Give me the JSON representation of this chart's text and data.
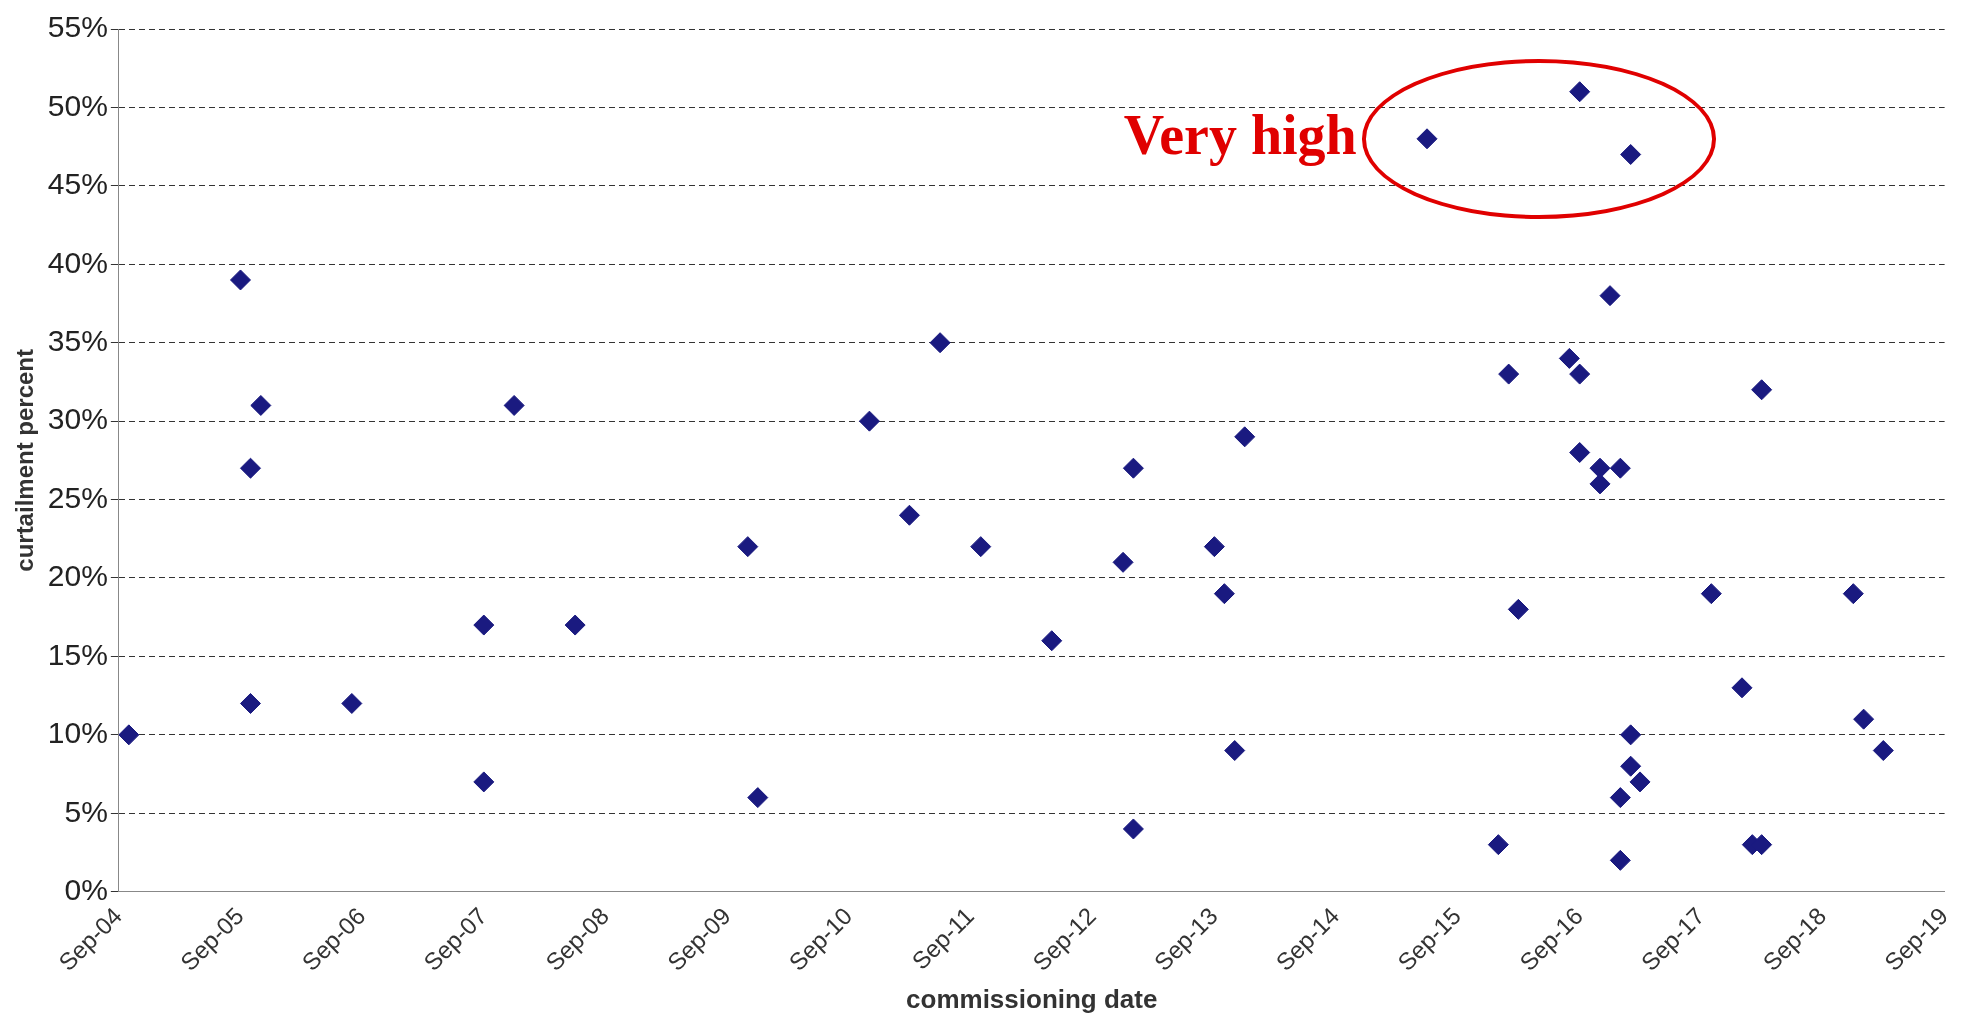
{
  "chart_data": {
    "type": "scatter",
    "xlabel": "commissioning date",
    "ylabel": "curtailment percent",
    "x": [
      "2004-10",
      "2005-09",
      "2005-10",
      "2005-11",
      "2005-10",
      "2006-08",
      "2007-09",
      "2007-09",
      "2007-12",
      "2008-06",
      "2009-11",
      "2009-12",
      "2010-11",
      "2011-03",
      "2011-06",
      "2011-10",
      "2012-05",
      "2012-12",
      "2013-01",
      "2013-01",
      "2013-09",
      "2013-10",
      "2013-12",
      "2013-11",
      "2015-06",
      "2016-01",
      "2016-02",
      "2016-03",
      "2016-08",
      "2016-09",
      "2016-09",
      "2016-09",
      "2016-11",
      "2016-11",
      "2016-12",
      "2017-01",
      "2017-01",
      "2017-01",
      "2017-02",
      "2017-02",
      "2017-02",
      "2017-03",
      "2017-10",
      "2018-01",
      "2018-02",
      "2018-03",
      "2018-03",
      "2018-12",
      "2019-01",
      "2019-03"
    ],
    "values": [
      10,
      39,
      27,
      31,
      12,
      12,
      17,
      7,
      31,
      17,
      22,
      6,
      30,
      24,
      35,
      22,
      16,
      21,
      27,
      4,
      22,
      19,
      29,
      9,
      48,
      3,
      33,
      18,
      34,
      33,
      28,
      51,
      26,
      27,
      38,
      27,
      6,
      2,
      47,
      10,
      8,
      7,
      19,
      13,
      3,
      3,
      32,
      19,
      11,
      9
    ],
    "color": "#1a1a80",
    "marker": "diamond",
    "xlim": [
      "2004-09",
      "2019-09"
    ],
    "xticks": [
      {
        "value": "2004-09",
        "label": "Sep-04"
      },
      {
        "value": "2005-09",
        "label": "Sep-05"
      },
      {
        "value": "2006-09",
        "label": "Sep-06"
      },
      {
        "value": "2007-09",
        "label": "Sep-07"
      },
      {
        "value": "2008-09",
        "label": "Sep-08"
      },
      {
        "value": "2009-09",
        "label": "Sep-09"
      },
      {
        "value": "2010-09",
        "label": "Sep-10"
      },
      {
        "value": "2011-09",
        "label": "Sep-11"
      },
      {
        "value": "2012-09",
        "label": "Sep-12"
      },
      {
        "value": "2013-09",
        "label": "Sep-13"
      },
      {
        "value": "2014-09",
        "label": "Sep-14"
      },
      {
        "value": "2015-09",
        "label": "Sep-15"
      },
      {
        "value": "2016-09",
        "label": "Sep-16"
      },
      {
        "value": "2017-09",
        "label": "Sep-17"
      },
      {
        "value": "2018-09",
        "label": "Sep-18"
      },
      {
        "value": "2019-09",
        "label": "Sep-19"
      }
    ],
    "ylim": [
      0,
      55
    ],
    "yticks": [
      {
        "value": 0,
        "label": "0%"
      },
      {
        "value": 5,
        "label": "5%"
      },
      {
        "value": 10,
        "label": "10%"
      },
      {
        "value": 15,
        "label": "15%"
      },
      {
        "value": 20,
        "label": "20%"
      },
      {
        "value": 25,
        "label": "25%"
      },
      {
        "value": 30,
        "label": "30%"
      },
      {
        "value": 35,
        "label": "35%"
      },
      {
        "value": 40,
        "label": "40%"
      },
      {
        "value": 45,
        "label": "45%"
      },
      {
        "value": 50,
        "label": "50%"
      },
      {
        "value": 55,
        "label": "55%"
      }
    ],
    "grid": "y",
    "legend": false,
    "annotations": [
      "Very high"
    ]
  }
}
